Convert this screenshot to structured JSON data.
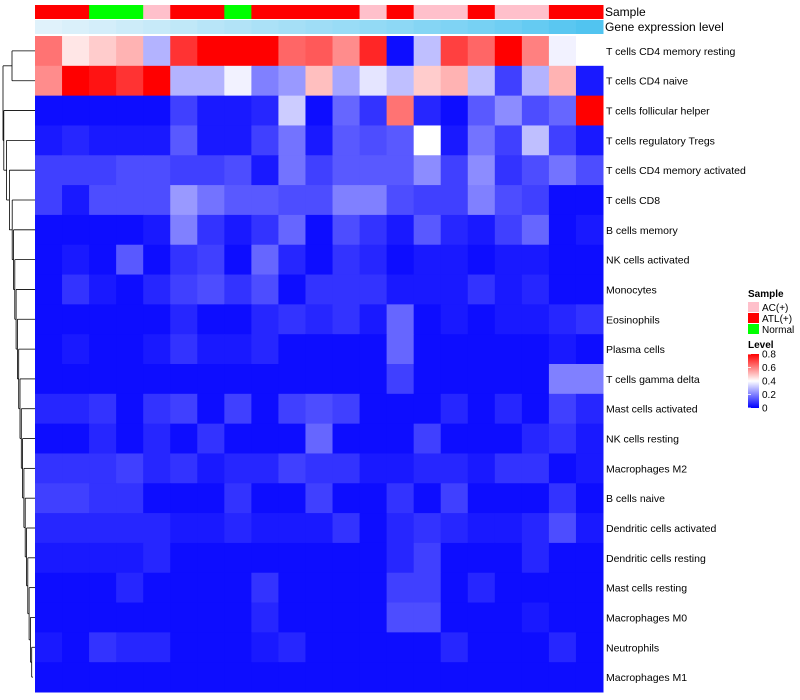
{
  "chart_data": {
    "type": "heatmap",
    "title": "",
    "annotations": [
      {
        "name": "Sample",
        "kind": "categorical",
        "values": [
          "ATL(+)",
          "ATL(+)",
          "Normal",
          "Normal",
          "AC(+)",
          "ATL(+)",
          "ATL(+)",
          "Normal",
          "ATL(+)",
          "ATL(+)",
          "ATL(+)",
          "ATL(+)",
          "AC(+)",
          "ATL(+)",
          "AC(+)",
          "AC(+)",
          "ATL(+)",
          "AC(+)",
          "AC(+)",
          "ATL(+)",
          "ATL(+)"
        ]
      },
      {
        "name": "Gene expression level",
        "kind": "continuous",
        "values": [
          0.04,
          0.08,
          0.12,
          0.16,
          0.2,
          0.25,
          0.3,
          0.34,
          0.38,
          0.42,
          0.46,
          0.5,
          0.54,
          0.58,
          0.63,
          0.67,
          0.72,
          0.77,
          0.84,
          0.91,
          0.97
        ]
      }
    ],
    "rows": [
      {
        "label": "T cells CD4 memory resting",
        "values": [
          0.62,
          0.44,
          0.48,
          0.52,
          0.28,
          0.72,
          0.82,
          0.82,
          0.82,
          0.64,
          0.66,
          0.58,
          0.74,
          0.02,
          0.3,
          0.7,
          0.64,
          0.82,
          0.6,
          0.38,
          0.4
        ]
      },
      {
        "label": "T cells CD4 naive",
        "values": [
          0.58,
          0.8,
          0.77,
          0.72,
          0.82,
          0.28,
          0.28,
          0.38,
          0.2,
          0.24,
          0.5,
          0.26,
          0.36,
          0.3,
          0.48,
          0.52,
          0.3,
          0.1,
          0.28,
          0.52,
          0.04
        ]
      },
      {
        "label": "T cells follicular helper",
        "values": [
          0.02,
          0.02,
          0.02,
          0.02,
          0.02,
          0.1,
          0.04,
          0.04,
          0.06,
          0.32,
          0.02,
          0.16,
          0.08,
          0.62,
          0.06,
          0.02,
          0.14,
          0.22,
          0.12,
          0.16,
          0.82
        ]
      },
      {
        "label": "T cells regulatory  Tregs",
        "values": [
          0.04,
          0.06,
          0.04,
          0.04,
          0.04,
          0.14,
          0.04,
          0.04,
          0.1,
          0.18,
          0.04,
          0.14,
          0.12,
          0.14,
          0.4,
          0.04,
          0.18,
          0.1,
          0.3,
          0.1,
          0.04
        ]
      },
      {
        "label": "T cells CD4 memory activated",
        "values": [
          0.1,
          0.1,
          0.1,
          0.12,
          0.12,
          0.1,
          0.1,
          0.12,
          0.04,
          0.18,
          0.1,
          0.14,
          0.14,
          0.14,
          0.22,
          0.1,
          0.22,
          0.08,
          0.12,
          0.18,
          0.12
        ]
      },
      {
        "label": "T cells CD8",
        "values": [
          0.1,
          0.04,
          0.12,
          0.12,
          0.12,
          0.24,
          0.18,
          0.14,
          0.14,
          0.12,
          0.12,
          0.2,
          0.2,
          0.12,
          0.1,
          0.1,
          0.2,
          0.12,
          0.1,
          0.02,
          0.02
        ]
      },
      {
        "label": "B cells memory",
        "values": [
          0.02,
          0.02,
          0.02,
          0.02,
          0.04,
          0.2,
          0.08,
          0.04,
          0.08,
          0.16,
          0.02,
          0.12,
          0.08,
          0.04,
          0.14,
          0.06,
          0.04,
          0.1,
          0.16,
          0.02,
          0.04
        ]
      },
      {
        "label": "NK cells activated",
        "values": [
          0.02,
          0.04,
          0.02,
          0.14,
          0.02,
          0.08,
          0.1,
          0.02,
          0.16,
          0.06,
          0.02,
          0.08,
          0.06,
          0.02,
          0.04,
          0.04,
          0.02,
          0.04,
          0.04,
          0.02,
          0.02
        ]
      },
      {
        "label": "Monocytes",
        "values": [
          0.02,
          0.08,
          0.04,
          0.02,
          0.06,
          0.1,
          0.12,
          0.08,
          0.12,
          0.02,
          0.08,
          0.08,
          0.08,
          0.04,
          0.04,
          0.04,
          0.08,
          0.04,
          0.06,
          0.02,
          0.02
        ]
      },
      {
        "label": "Eosinophils",
        "values": [
          0.02,
          0.02,
          0.02,
          0.02,
          0.02,
          0.06,
          0.02,
          0.02,
          0.06,
          0.08,
          0.06,
          0.08,
          0.04,
          0.16,
          0.02,
          0.04,
          0.02,
          0.04,
          0.04,
          0.06,
          0.08
        ]
      },
      {
        "label": "Plasma cells",
        "values": [
          0.02,
          0.04,
          0.02,
          0.02,
          0.04,
          0.08,
          0.04,
          0.04,
          0.06,
          0.02,
          0.02,
          0.02,
          0.02,
          0.16,
          0.02,
          0.02,
          0.02,
          0.02,
          0.02,
          0.04,
          0.02
        ]
      },
      {
        "label": "T cells gamma delta",
        "values": [
          0.02,
          0.02,
          0.02,
          0.02,
          0.02,
          0.02,
          0.02,
          0.02,
          0.02,
          0.02,
          0.02,
          0.02,
          0.02,
          0.1,
          0.02,
          0.02,
          0.02,
          0.02,
          0.02,
          0.2,
          0.2
        ]
      },
      {
        "label": "Mast cells activated",
        "values": [
          0.06,
          0.06,
          0.08,
          0.02,
          0.08,
          0.1,
          0.02,
          0.1,
          0.02,
          0.1,
          0.12,
          0.1,
          0.02,
          0.02,
          0.02,
          0.06,
          0.02,
          0.06,
          0.02,
          0.1,
          0.06
        ]
      },
      {
        "label": "NK cells resting",
        "values": [
          0.02,
          0.02,
          0.06,
          0.02,
          0.06,
          0.02,
          0.08,
          0.02,
          0.02,
          0.02,
          0.16,
          0.02,
          0.02,
          0.02,
          0.1,
          0.02,
          0.02,
          0.02,
          0.06,
          0.08,
          0.04
        ]
      },
      {
        "label": "Macrophages M2",
        "values": [
          0.08,
          0.08,
          0.08,
          0.1,
          0.06,
          0.08,
          0.04,
          0.06,
          0.06,
          0.1,
          0.08,
          0.08,
          0.04,
          0.04,
          0.06,
          0.06,
          0.04,
          0.08,
          0.08,
          0.02,
          0.04
        ]
      },
      {
        "label": "B cells naive",
        "values": [
          0.1,
          0.1,
          0.08,
          0.08,
          0.02,
          0.02,
          0.02,
          0.08,
          0.02,
          0.02,
          0.1,
          0.02,
          0.02,
          0.08,
          0.02,
          0.1,
          0.02,
          0.02,
          0.02,
          0.08,
          0.02
        ]
      },
      {
        "label": "Dendritic cells activated",
        "values": [
          0.06,
          0.06,
          0.06,
          0.06,
          0.06,
          0.04,
          0.04,
          0.06,
          0.04,
          0.04,
          0.04,
          0.08,
          0.02,
          0.06,
          0.08,
          0.06,
          0.04,
          0.04,
          0.06,
          0.12,
          0.04
        ]
      },
      {
        "label": "Dendritic cells resting",
        "values": [
          0.04,
          0.04,
          0.04,
          0.04,
          0.06,
          0.02,
          0.02,
          0.02,
          0.02,
          0.02,
          0.02,
          0.02,
          0.02,
          0.06,
          0.1,
          0.02,
          0.02,
          0.02,
          0.06,
          0.02,
          0.02
        ]
      },
      {
        "label": "Mast cells resting",
        "values": [
          0.02,
          0.02,
          0.02,
          0.06,
          0.02,
          0.02,
          0.02,
          0.02,
          0.08,
          0.02,
          0.02,
          0.02,
          0.02,
          0.1,
          0.1,
          0.02,
          0.06,
          0.02,
          0.02,
          0.02,
          0.02
        ]
      },
      {
        "label": "Macrophages M0",
        "values": [
          0.02,
          0.02,
          0.02,
          0.02,
          0.02,
          0.02,
          0.02,
          0.02,
          0.06,
          0.02,
          0.02,
          0.02,
          0.02,
          0.12,
          0.12,
          0.02,
          0.02,
          0.02,
          0.04,
          0.02,
          0.02
        ]
      },
      {
        "label": "Neutrophils",
        "values": [
          0.04,
          0.02,
          0.08,
          0.06,
          0.06,
          0.02,
          0.02,
          0.02,
          0.04,
          0.06,
          0.02,
          0.02,
          0.02,
          0.02,
          0.02,
          0.06,
          0.02,
          0.02,
          0.02,
          0.06,
          0.02
        ]
      },
      {
        "label": "Macrophages M1",
        "values": [
          0.02,
          0.02,
          0.02,
          0.02,
          0.02,
          0.02,
          0.02,
          0.02,
          0.02,
          0.02,
          0.02,
          0.02,
          0.02,
          0.02,
          0.02,
          0.02,
          0.02,
          0.02,
          0.02,
          0.02,
          0.02
        ]
      }
    ],
    "color_scale": {
      "min": 0,
      "mid": 0.4,
      "max": 0.8,
      "low": "#0000ff",
      "midColor": "#ffffff",
      "high": "#ff0000"
    },
    "legend": {
      "position": "right",
      "sample": {
        "title": "Sample",
        "items": [
          {
            "label": "AC(+)",
            "color": "#ffc0cb"
          },
          {
            "label": "ATL(+)",
            "color": "#ff0000"
          },
          {
            "label": "Normal",
            "color": "#00ff00"
          }
        ]
      },
      "level": {
        "title": "Level",
        "ticks": [
          "0.8",
          "0.6",
          "0.4",
          "0.2",
          "0"
        ],
        "tick_values": [
          0.8,
          0.6,
          0.4,
          0.2,
          0.0
        ]
      }
    },
    "gene_expression_colors": {
      "low": "#e6f4fb",
      "high": "#4cc3f0"
    },
    "row_dendrogram": true
  }
}
